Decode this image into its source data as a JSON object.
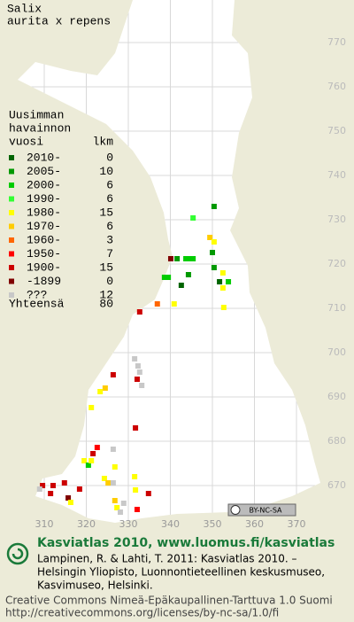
{
  "title": [
    "Salix",
    "aurita x repens"
  ],
  "legend": {
    "heading": [
      "Uusimman",
      "havainnon",
      "vuosi"
    ],
    "count_heading": "lkm",
    "rows": [
      {
        "label": "2010-",
        "count": 0,
        "color": "#006400"
      },
      {
        "label": "2005-",
        "count": 10,
        "color": "#009900"
      },
      {
        "label": "2000-",
        "count": 6,
        "color": "#00cc00"
      },
      {
        "label": "1990-",
        "count": 6,
        "color": "#33ff33"
      },
      {
        "label": "1980-",
        "count": 15,
        "color": "#ffff00"
      },
      {
        "label": "1970-",
        "count": 6,
        "color": "#ffcc00"
      },
      {
        "label": "1960-",
        "count": 3,
        "color": "#ff6600"
      },
      {
        "label": "1950-",
        "count": 7,
        "color": "#ff0000"
      },
      {
        "label": "1900-",
        "count": 15,
        "color": "#cc0000"
      },
      {
        "label": "-1899",
        "count": 0,
        "color": "#800000"
      },
      {
        "label": "???",
        "count": 12,
        "color": "#c8c8c8"
      }
    ],
    "total_label": "Yhteensä",
    "total": 80
  },
  "map": {
    "xticks": [
      310,
      320,
      330,
      340,
      350,
      360,
      370
    ],
    "yticks": [
      770,
      760,
      750,
      740,
      730,
      720,
      710,
      700,
      690,
      680,
      670
    ],
    "points": [
      {
        "e": 350.4,
        "n": 733,
        "class": 1
      },
      {
        "e": 345.4,
        "n": 730.4,
        "class": 3
      },
      {
        "e": 349.4,
        "n": 726,
        "class": 5
      },
      {
        "e": 350.4,
        "n": 725,
        "class": 4
      },
      {
        "e": 340.1,
        "n": 721.2,
        "class": 9
      },
      {
        "e": 341.6,
        "n": 721.2,
        "class": 1
      },
      {
        "e": 343.7,
        "n": 721.2,
        "class": 2
      },
      {
        "e": 344.7,
        "n": 721.2,
        "class": 2
      },
      {
        "e": 345.4,
        "n": 721.2,
        "class": 2
      },
      {
        "e": 350,
        "n": 722.6,
        "class": 1
      },
      {
        "e": 350.4,
        "n": 719.2,
        "class": 1
      },
      {
        "e": 352.5,
        "n": 718,
        "class": 4
      },
      {
        "e": 338.6,
        "n": 717,
        "class": 2
      },
      {
        "e": 339.5,
        "n": 717,
        "class": 2
      },
      {
        "e": 344.3,
        "n": 717.6,
        "class": 1
      },
      {
        "e": 342.6,
        "n": 715.2,
        "class": 0
      },
      {
        "e": 351.7,
        "n": 716,
        "class": 0
      },
      {
        "e": 353.8,
        "n": 716,
        "class": 2
      },
      {
        "e": 352.5,
        "n": 714.6,
        "class": 4
      },
      {
        "e": 352.7,
        "n": 710.2,
        "class": 4
      },
      {
        "e": 336.9,
        "n": 711,
        "class": 6
      },
      {
        "e": 340.9,
        "n": 711,
        "class": 4
      },
      {
        "e": 332.7,
        "n": 709.2,
        "class": 8
      },
      {
        "e": 331.5,
        "n": 698.6,
        "class": 10
      },
      {
        "e": 332.3,
        "n": 697,
        "class": 10
      },
      {
        "e": 332.7,
        "n": 695.6,
        "class": 10
      },
      {
        "e": 332.1,
        "n": 694,
        "class": 8
      },
      {
        "e": 333.2,
        "n": 692.6,
        "class": 10
      },
      {
        "e": 326.4,
        "n": 695,
        "class": 8
      },
      {
        "e": 324.5,
        "n": 692,
        "class": 5
      },
      {
        "e": 323.3,
        "n": 691.2,
        "class": 4
      },
      {
        "e": 321.2,
        "n": 687.6,
        "class": 4
      },
      {
        "e": 331.7,
        "n": 683,
        "class": 8
      },
      {
        "e": 322.6,
        "n": 678.6,
        "class": 7
      },
      {
        "e": 321.6,
        "n": 677.2,
        "class": 8
      },
      {
        "e": 326.4,
        "n": 678.2,
        "class": 10
      },
      {
        "e": 319.5,
        "n": 675.6,
        "class": 4
      },
      {
        "e": 320.5,
        "n": 674.6,
        "class": 2
      },
      {
        "e": 321.2,
        "n": 675.6,
        "class": 4
      },
      {
        "e": 326.8,
        "n": 674.2,
        "class": 4
      },
      {
        "e": 324.3,
        "n": 671.6,
        "class": 4
      },
      {
        "e": 325.2,
        "n": 670.6,
        "class": 5
      },
      {
        "e": 326.4,
        "n": 670.6,
        "class": 10
      },
      {
        "e": 331.5,
        "n": 672,
        "class": 4
      },
      {
        "e": 331.7,
        "n": 669,
        "class": 4
      },
      {
        "e": 334.8,
        "n": 668.2,
        "class": 8
      },
      {
        "e": 309.6,
        "n": 670,
        "class": 8
      },
      {
        "e": 308.9,
        "n": 669.2,
        "class": 10
      },
      {
        "e": 312.1,
        "n": 670,
        "class": 8
      },
      {
        "e": 314.8,
        "n": 670.6,
        "class": 8
      },
      {
        "e": 318.4,
        "n": 669.2,
        "class": 8
      },
      {
        "e": 311.5,
        "n": 668.2,
        "class": 8
      },
      {
        "e": 315.7,
        "n": 667.2,
        "class": 9
      },
      {
        "e": 316.3,
        "n": 666.2,
        "class": 4
      },
      {
        "e": 326.8,
        "n": 666.6,
        "class": 5
      },
      {
        "e": 327.3,
        "n": 665,
        "class": 4
      },
      {
        "e": 328.9,
        "n": 666,
        "class": 10
      },
      {
        "e": 328.1,
        "n": 664,
        "class": 10
      },
      {
        "e": 332.1,
        "n": 664.6,
        "class": 7
      }
    ]
  },
  "license_badge": "BY-NC-SA",
  "footer": {
    "heading": "Kasviatlas 2010, www.luomus.fi/kasviatlas",
    "citation": [
      "Lampinen, R. & Lahti, T. 2011: Kasviatlas 2010. –",
      "Helsingin Yliopisto, Luonnontieteellinen keskusmuseo,",
      "Kasvimuseo, Helsinki."
    ],
    "license": [
      "Creative Commons Nimeä-Epäkaupallinen-Tarttuva 1.0 Suomi",
      "http://creativecommons.org/licenses/by-nc-sa/1.0/fi"
    ]
  }
}
